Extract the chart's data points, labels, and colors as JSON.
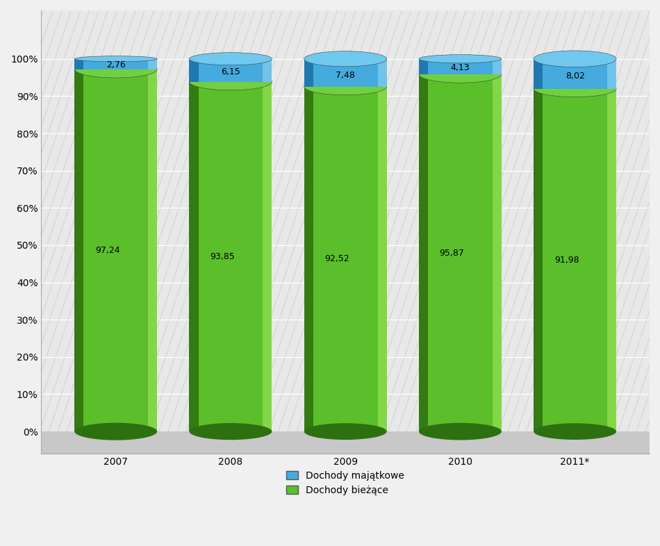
{
  "categories": [
    "2007",
    "2008",
    "2009",
    "2010",
    "2011*"
  ],
  "green_values": [
    97.24,
    93.85,
    92.52,
    95.87,
    91.98
  ],
  "blue_values": [
    2.76,
    6.15,
    7.48,
    4.13,
    8.02
  ],
  "legend_blue_label": "Dochody majątkowe",
  "legend_green_label": "Dochody bieżące",
  "ylabel_ticks": [
    "0%",
    "10%",
    "20%",
    "30%",
    "40%",
    "50%",
    "60%",
    "70%",
    "80%",
    "90%",
    "100%"
  ],
  "background_color": "#f0f0f0",
  "plot_bg_color": "#ffffff",
  "bar_width": 0.72,
  "green_face": "#5abf2a",
  "green_left": "#2d7010",
  "green_right": "#90e050",
  "green_top": "#70d040",
  "blue_face": "#45aadd",
  "blue_left": "#1a70aa",
  "blue_right": "#80ccee",
  "blue_top": "#70c8ef",
  "floor_color": "#c8c8c8",
  "wall_line_color": "#b0b0b0",
  "label_fontsize": 9,
  "tick_fontsize": 10
}
